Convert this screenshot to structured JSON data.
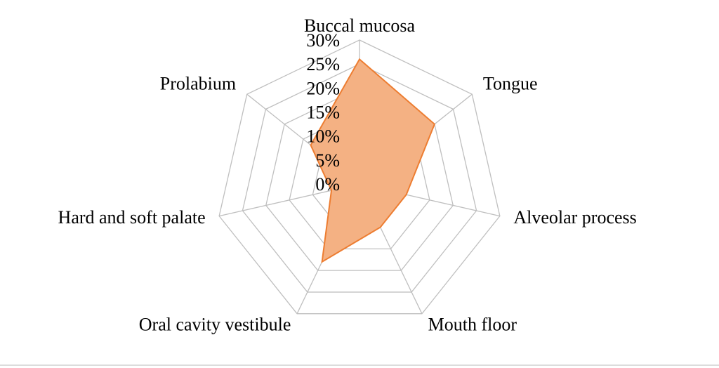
{
  "chart_data": {
    "type": "radar",
    "categories": [
      "Buccal mucosa",
      "Tongue",
      "Alveolar process",
      "Mouth floor",
      "Oral cavity vestibule",
      "Hard and soft palate",
      "Prolabium"
    ],
    "values": [
      26,
      20,
      10,
      10,
      18,
      6,
      13
    ],
    "line_color": "#ed7d31",
    "fill_color": "#f4b183",
    "rlim": [
      0,
      30
    ],
    "rticks": [
      {
        "value": 0,
        "label": "0%"
      },
      {
        "value": 5,
        "label": "5%"
      },
      {
        "value": 10,
        "label": "10%"
      },
      {
        "value": 15,
        "label": "15%"
      },
      {
        "value": 20,
        "label": "20%"
      },
      {
        "value": 25,
        "label": "25%"
      },
      {
        "value": 30,
        "label": "30%"
      }
    ],
    "grid": true
  }
}
